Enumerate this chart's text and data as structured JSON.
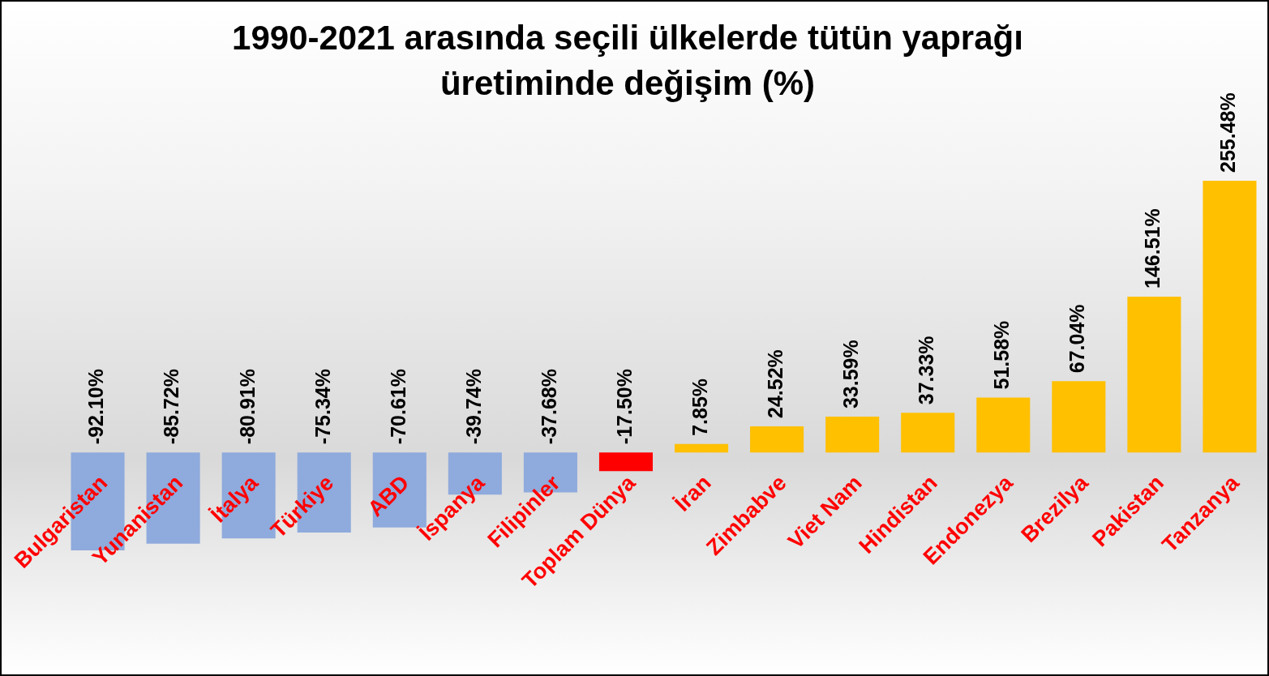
{
  "chart_data": {
    "type": "bar",
    "title": "1990-2021 arasında seçili ülkelerde tütün yaprağı üretiminde değişim (%)",
    "categories": [
      "Bulgaristan",
      "Yunanistan",
      "İtalya",
      "Türkiye",
      "ABD",
      "İspanya",
      "Filipinler",
      "Toplam Dünya",
      "İran",
      "Zimbabve",
      "Viet Nam",
      "Hindistan",
      "Endonezya",
      "Brezilya",
      "Pakistan",
      "Tanzanya"
    ],
    "values": [
      -92.1,
      -85.72,
      -80.91,
      -75.34,
      -70.61,
      -39.74,
      -37.68,
      -17.5,
      7.85,
      24.52,
      33.59,
      37.33,
      51.58,
      67.04,
      146.51,
      255.48
    ],
    "colors": [
      "#8faadc",
      "#8faadc",
      "#8faadc",
      "#8faadc",
      "#8faadc",
      "#8faadc",
      "#8faadc",
      "#ff0000",
      "#ffc000",
      "#ffc000",
      "#ffc000",
      "#ffc000",
      "#ffc000",
      "#ffc000",
      "#ffc000",
      "#ffc000"
    ],
    "value_labels": [
      "-92.10%",
      "-85.72%",
      "-80.91%",
      "-75.34%",
      "-70.61%",
      "-39.74%",
      "-37.68%",
      "-17.50%",
      "7.85%",
      "24.52%",
      "33.59%",
      "37.33%",
      "51.58%",
      "67.04%",
      "146.51%",
      "255.48%"
    ],
    "tick_labels": "x"
  }
}
